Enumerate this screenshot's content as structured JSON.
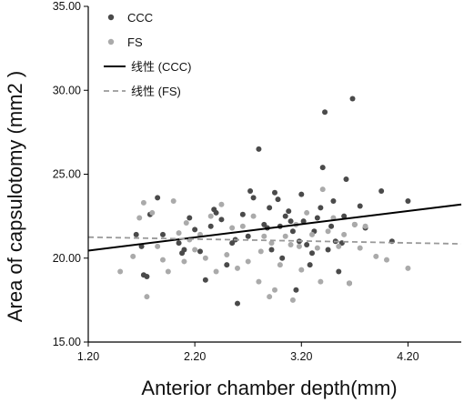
{
  "chart_data": {
    "type": "scatter",
    "xlabel": "Anterior chamber depth(mm)",
    "ylabel": "Area of capsulotomy (mm2 )",
    "xlim": [
      1.2,
      4.7
    ],
    "ylim": [
      15.0,
      35.0
    ],
    "x_ticks": [
      "1.20",
      "2.20",
      "3.20",
      "4.20"
    ],
    "y_ticks": [
      "15.00",
      "20.00",
      "25.00",
      "30.00",
      "35.00"
    ],
    "grid": false,
    "legend_position": "top-left",
    "series": [
      {
        "name": "CCC",
        "color": "#4a4a4a",
        "points": [
          [
            1.65,
            21.4
          ],
          [
            1.7,
            20.7
          ],
          [
            1.72,
            19.0
          ],
          [
            1.75,
            18.9
          ],
          [
            1.78,
            22.6
          ],
          [
            1.85,
            23.6
          ],
          [
            1.9,
            21.4
          ],
          [
            2.05,
            20.9
          ],
          [
            2.08,
            20.3
          ],
          [
            2.1,
            20.5
          ],
          [
            2.15,
            22.4
          ],
          [
            2.2,
            21.7
          ],
          [
            2.25,
            20.4
          ],
          [
            2.3,
            18.7
          ],
          [
            2.35,
            21.9
          ],
          [
            2.38,
            22.9
          ],
          [
            2.4,
            22.7
          ],
          [
            2.45,
            22.3
          ],
          [
            2.5,
            19.6
          ],
          [
            2.55,
            20.9
          ],
          [
            2.58,
            21.1
          ],
          [
            2.6,
            17.3
          ],
          [
            2.65,
            22.6
          ],
          [
            2.7,
            21.3
          ],
          [
            2.72,
            24.0
          ],
          [
            2.75,
            23.6
          ],
          [
            2.8,
            26.5
          ],
          [
            2.85,
            22.0
          ],
          [
            2.88,
            21.8
          ],
          [
            2.9,
            23.0
          ],
          [
            2.92,
            20.5
          ],
          [
            2.95,
            23.9
          ],
          [
            2.98,
            23.5
          ],
          [
            3.0,
            21.9
          ],
          [
            3.02,
            20.0
          ],
          [
            3.05,
            22.5
          ],
          [
            3.08,
            22.8
          ],
          [
            3.1,
            22.2
          ],
          [
            3.12,
            21.6
          ],
          [
            3.15,
            18.1
          ],
          [
            3.18,
            21.0
          ],
          [
            3.2,
            23.8
          ],
          [
            3.22,
            22.2
          ],
          [
            3.25,
            20.8
          ],
          [
            3.28,
            19.6
          ],
          [
            3.3,
            20.3
          ],
          [
            3.32,
            21.6
          ],
          [
            3.35,
            22.4
          ],
          [
            3.38,
            23.0
          ],
          [
            3.4,
            25.4
          ],
          [
            3.42,
            28.7
          ],
          [
            3.45,
            20.5
          ],
          [
            3.48,
            21.9
          ],
          [
            3.5,
            23.4
          ],
          [
            3.52,
            21.0
          ],
          [
            3.55,
            19.2
          ],
          [
            3.58,
            20.9
          ],
          [
            3.6,
            22.5
          ],
          [
            3.62,
            24.7
          ],
          [
            3.65,
            18.5
          ],
          [
            3.68,
            29.5
          ],
          [
            3.7,
            22.0
          ],
          [
            3.75,
            23.1
          ],
          [
            3.8,
            21.8
          ],
          [
            3.95,
            24.0
          ],
          [
            4.05,
            21.0
          ],
          [
            4.2,
            23.4
          ]
        ]
      },
      {
        "name": "FS",
        "color": "#aaaaaa",
        "points": [
          [
            1.5,
            19.2
          ],
          [
            1.62,
            20.1
          ],
          [
            1.68,
            22.4
          ],
          [
            1.72,
            23.3
          ],
          [
            1.75,
            17.7
          ],
          [
            1.8,
            22.7
          ],
          [
            1.85,
            20.7
          ],
          [
            1.9,
            19.9
          ],
          [
            1.95,
            19.2
          ],
          [
            2.0,
            23.4
          ],
          [
            2.05,
            21.5
          ],
          [
            2.1,
            19.8
          ],
          [
            2.12,
            22.1
          ],
          [
            2.15,
            21.1
          ],
          [
            2.2,
            20.5
          ],
          [
            2.25,
            21.4
          ],
          [
            2.3,
            20.0
          ],
          [
            2.35,
            22.5
          ],
          [
            2.4,
            19.2
          ],
          [
            2.45,
            23.2
          ],
          [
            2.5,
            20.2
          ],
          [
            2.55,
            21.8
          ],
          [
            2.6,
            19.4
          ],
          [
            2.65,
            21.9
          ],
          [
            2.7,
            19.8
          ],
          [
            2.75,
            22.5
          ],
          [
            2.8,
            18.6
          ],
          [
            2.82,
            20.4
          ],
          [
            2.85,
            21.3
          ],
          [
            2.9,
            17.7
          ],
          [
            2.92,
            20.9
          ],
          [
            2.95,
            18.1
          ],
          [
            3.0,
            19.6
          ],
          [
            3.05,
            21.3
          ],
          [
            3.1,
            20.8
          ],
          [
            3.12,
            17.5
          ],
          [
            3.15,
            22.0
          ],
          [
            3.18,
            20.7
          ],
          [
            3.2,
            19.3
          ],
          [
            3.25,
            22.7
          ],
          [
            3.3,
            21.4
          ],
          [
            3.35,
            20.6
          ],
          [
            3.38,
            18.6
          ],
          [
            3.4,
            24.1
          ],
          [
            3.45,
            21.6
          ],
          [
            3.5,
            22.4
          ],
          [
            3.55,
            20.7
          ],
          [
            3.6,
            21.4
          ],
          [
            3.65,
            18.5
          ],
          [
            3.7,
            22.0
          ],
          [
            3.75,
            20.6
          ],
          [
            3.8,
            21.9
          ],
          [
            3.9,
            20.1
          ],
          [
            4.0,
            19.9
          ],
          [
            4.2,
            19.4
          ]
        ]
      },
      {
        "name": "线性 (CCC)",
        "color": "#000000",
        "style": "solid",
        "line": [
          [
            1.2,
            20.45
          ],
          [
            4.7,
            23.2
          ]
        ]
      },
      {
        "name": "线性 (FS)",
        "color": "#999999",
        "style": "dashed",
        "line": [
          [
            1.2,
            21.25
          ],
          [
            4.7,
            20.85
          ]
        ]
      }
    ]
  }
}
